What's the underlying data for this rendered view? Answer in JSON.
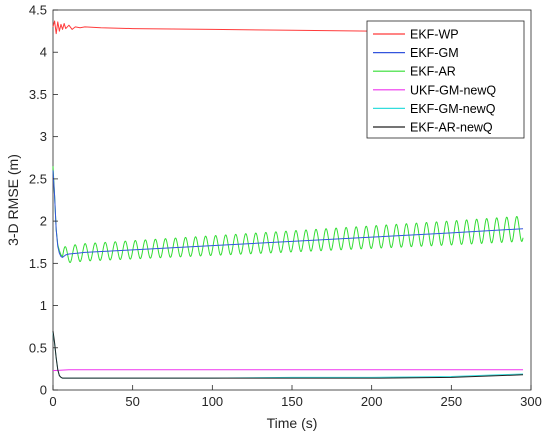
{
  "chart_data": {
    "type": "line",
    "xlabel": "Time (s)",
    "ylabel": "3-D RMSE (m)",
    "xlim": [
      0,
      300
    ],
    "ylim": [
      0,
      4.5
    ],
    "xticks": [
      0,
      50,
      100,
      150,
      200,
      250,
      300
    ],
    "yticks": [
      0,
      0.5,
      1,
      1.5,
      2,
      2.5,
      3,
      3.5,
      4,
      4.5
    ],
    "xtick_labels": [
      "0",
      "50",
      "100",
      "150",
      "200",
      "250",
      "300"
    ],
    "ytick_labels": [
      "0",
      "0.5",
      "1",
      "1.5",
      "2",
      "2.5",
      "3",
      "3.5",
      "4",
      "4.5"
    ],
    "grid": false,
    "legend_position": "top-right",
    "series": [
      {
        "name": "EKF-WP",
        "color": "#ff3b3b",
        "x": [
          0,
          1,
          2,
          3,
          4,
          5,
          6,
          7,
          8,
          10,
          12,
          14,
          17,
          20,
          30,
          50,
          100,
          150,
          200,
          250,
          295
        ],
        "y": [
          4.3,
          4.37,
          4.22,
          4.36,
          4.25,
          4.33,
          4.27,
          4.34,
          4.28,
          4.32,
          4.27,
          4.3,
          4.29,
          4.3,
          4.29,
          4.28,
          4.27,
          4.26,
          4.25,
          4.24,
          4.23
        ]
      },
      {
        "name": "EKF-GM",
        "color": "#3355dd",
        "x": [
          0,
          1,
          2,
          3,
          4,
          5,
          6,
          8,
          10,
          15,
          20,
          50,
          100,
          150,
          200,
          250,
          295
        ],
        "y": [
          2.6,
          2.3,
          1.9,
          1.7,
          1.62,
          1.58,
          1.57,
          1.6,
          1.61,
          1.62,
          1.63,
          1.66,
          1.71,
          1.76,
          1.81,
          1.86,
          1.91
        ]
      },
      {
        "name": "EKF-AR",
        "color": "#33dd33",
        "x": [
          0,
          1,
          2,
          3,
          4,
          5,
          6,
          8,
          10,
          15,
          20,
          50,
          100,
          150,
          200,
          250,
          295
        ],
        "y": [
          2.65,
          2.3,
          1.9,
          1.72,
          1.65,
          1.6,
          1.58,
          1.6,
          1.61,
          1.62,
          1.63,
          1.66,
          1.71,
          1.76,
          1.81,
          1.86,
          1.91
        ],
        "oscillation": {
          "period": 6.3,
          "start_amplitude": 0.1,
          "end_amplitude": 0.15
        }
      },
      {
        "name": "UKF-GM-newQ",
        "color": "#ee33ee",
        "x": [
          0,
          10,
          50,
          100,
          150,
          200,
          250,
          295
        ],
        "y": [
          0.23,
          0.24,
          0.24,
          0.24,
          0.24,
          0.24,
          0.24,
          0.24
        ]
      },
      {
        "name": "EKF-GM-newQ",
        "color": "#33dddd",
        "x": [
          0,
          1,
          2,
          3,
          4,
          5,
          6,
          8,
          10,
          50,
          100,
          150,
          200,
          250,
          265,
          280,
          295
        ],
        "y": [
          0.68,
          0.55,
          0.38,
          0.24,
          0.17,
          0.15,
          0.14,
          0.14,
          0.14,
          0.14,
          0.14,
          0.15,
          0.15,
          0.16,
          0.17,
          0.18,
          0.19
        ]
      },
      {
        "name": "EKF-AR-newQ",
        "color": "#222222",
        "x": [
          0,
          1,
          2,
          3,
          4,
          5,
          6,
          8,
          10,
          50,
          100,
          150,
          200,
          250,
          265,
          280,
          295
        ],
        "y": [
          0.7,
          0.56,
          0.38,
          0.24,
          0.17,
          0.15,
          0.14,
          0.14,
          0.14,
          0.14,
          0.14,
          0.14,
          0.14,
          0.15,
          0.16,
          0.17,
          0.18
        ]
      }
    ]
  }
}
